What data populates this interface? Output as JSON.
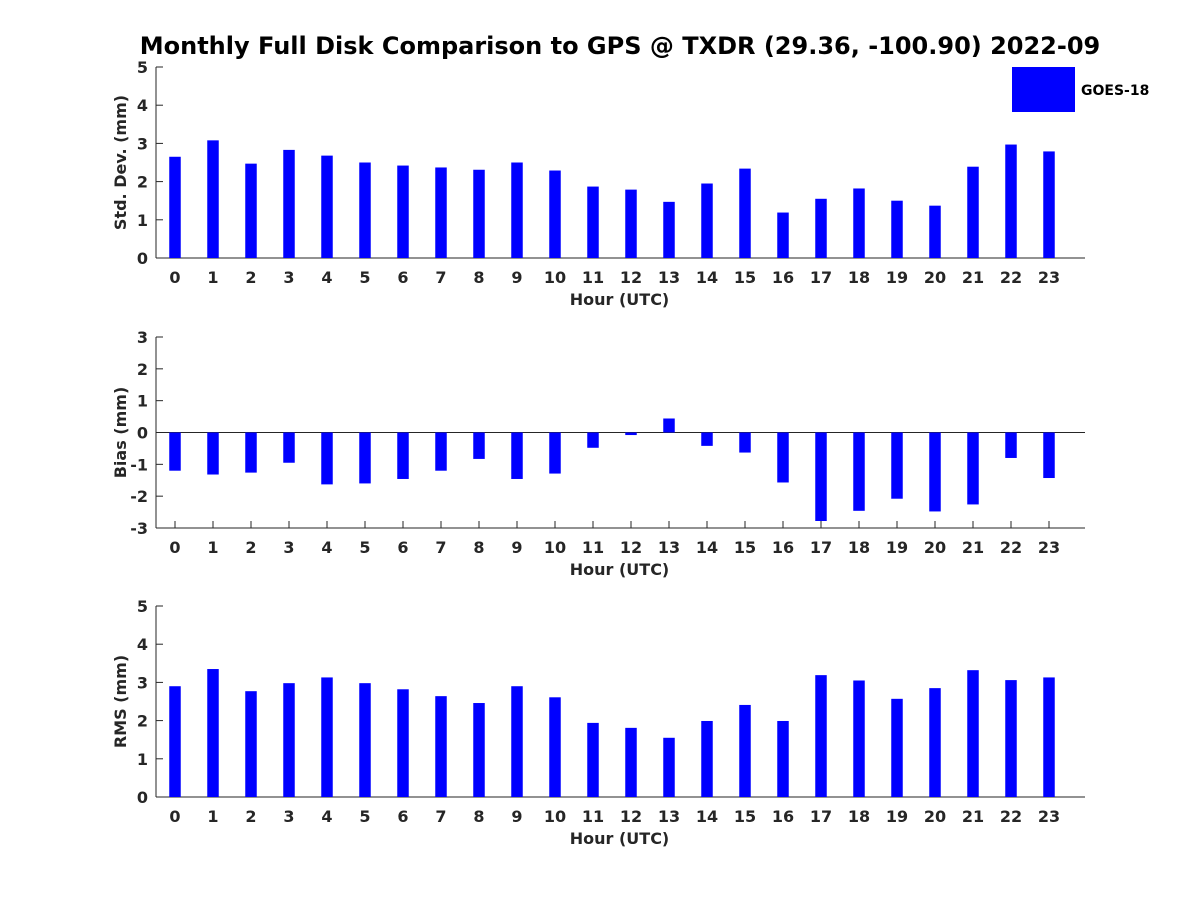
{
  "title": "Monthly Full Disk Comparison to GPS @ TXDR (29.36, -100.90) 2022-09",
  "legend": {
    "label": "GOES-18",
    "color": "#0000ff"
  },
  "chart_data": [
    {
      "type": "bar",
      "xlabel": "Hour (UTC)",
      "ylabel": "Std. Dev. (mm)",
      "ylim": [
        0,
        5
      ],
      "yticks": [
        "0",
        "1",
        "2",
        "3",
        "4",
        "5"
      ],
      "categories": [
        "0",
        "1",
        "2",
        "3",
        "4",
        "5",
        "6",
        "7",
        "8",
        "9",
        "10",
        "11",
        "12",
        "13",
        "14",
        "15",
        "16",
        "17",
        "18",
        "19",
        "20",
        "21",
        "22",
        "23"
      ],
      "series": [
        {
          "name": "GOES-18",
          "color": "#0000ff",
          "values": [
            2.65,
            3.08,
            2.47,
            2.83,
            2.68,
            2.5,
            2.42,
            2.37,
            2.31,
            2.5,
            2.29,
            1.87,
            1.79,
            1.47,
            1.95,
            2.34,
            1.19,
            1.55,
            1.82,
            1.5,
            1.37,
            2.39,
            2.97,
            2.79
          ]
        }
      ]
    },
    {
      "type": "bar",
      "xlabel": "Hour (UTC)",
      "ylabel": "Bias (mm)",
      "ylim": [
        -3,
        3
      ],
      "yticks": [
        "-3",
        "-2",
        "-1",
        "0",
        "1",
        "2",
        "3"
      ],
      "categories": [
        "0",
        "1",
        "2",
        "3",
        "4",
        "5",
        "6",
        "7",
        "8",
        "9",
        "10",
        "11",
        "12",
        "13",
        "14",
        "15",
        "16",
        "17",
        "18",
        "19",
        "20",
        "21",
        "22",
        "23"
      ],
      "series": [
        {
          "name": "GOES-18",
          "color": "#0000ff",
          "values": [
            -1.2,
            -1.32,
            -1.26,
            -0.95,
            -1.63,
            -1.6,
            -1.46,
            -1.2,
            -0.83,
            -1.46,
            -1.29,
            -0.48,
            -0.08,
            0.44,
            -0.42,
            -0.63,
            -1.57,
            -2.78,
            -2.46,
            -2.08,
            -2.48,
            -2.26,
            -0.8,
            -1.43
          ]
        }
      ]
    },
    {
      "type": "bar",
      "xlabel": "Hour (UTC)",
      "ylabel": "RMS (mm)",
      "ylim": [
        0,
        5
      ],
      "yticks": [
        "0",
        "1",
        "2",
        "3",
        "4",
        "5"
      ],
      "categories": [
        "0",
        "1",
        "2",
        "3",
        "4",
        "5",
        "6",
        "7",
        "8",
        "9",
        "10",
        "11",
        "12",
        "13",
        "14",
        "15",
        "16",
        "17",
        "18",
        "19",
        "20",
        "21",
        "22",
        "23"
      ],
      "series": [
        {
          "name": "GOES-18",
          "color": "#0000ff",
          "values": [
            2.9,
            3.35,
            2.77,
            2.98,
            3.13,
            2.98,
            2.82,
            2.64,
            2.46,
            2.9,
            2.61,
            1.94,
            1.81,
            1.55,
            1.99,
            2.41,
            1.99,
            3.19,
            3.05,
            2.57,
            2.85,
            3.32,
            3.06,
            3.13
          ]
        }
      ]
    }
  ]
}
